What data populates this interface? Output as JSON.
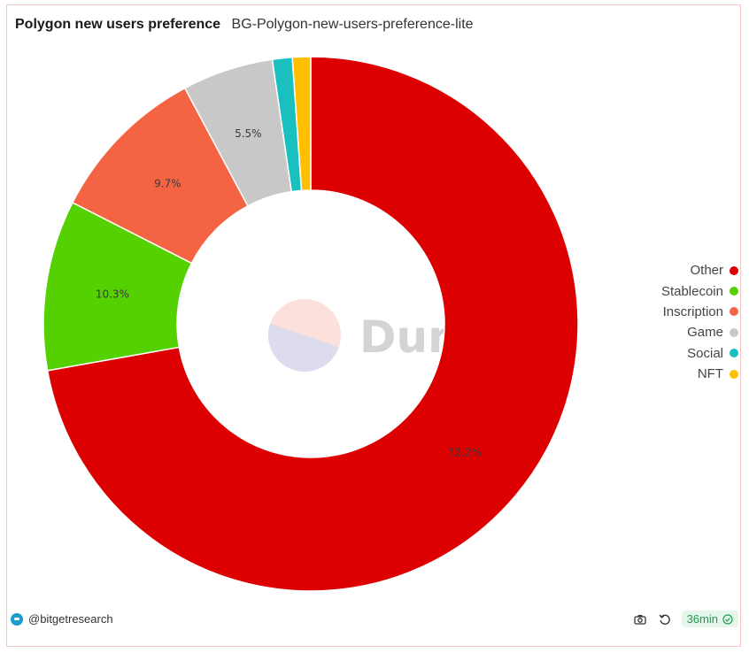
{
  "header": {
    "title": "Polygon new users preference",
    "subtitle": "BG-Polygon-new-users-preference-lite"
  },
  "chart_data": {
    "type": "pie",
    "donut": true,
    "title": "Polygon new users preference",
    "categories": [
      "Other",
      "Stablecoin",
      "Inscription",
      "Game",
      "Social",
      "NFT"
    ],
    "values": [
      72.2,
      10.3,
      9.7,
      5.5,
      1.2,
      1.1
    ],
    "value_labels": [
      "72.2%",
      "10.3%",
      "9.7%",
      "5.5%",
      "",
      ""
    ],
    "colors": [
      "#dd0000",
      "#55d000",
      "#f46342",
      "#c8c8c8",
      "#1abfbf",
      "#ffbf00"
    ],
    "legend_position": "right"
  },
  "watermark": {
    "text": "Dune"
  },
  "footer": {
    "author": "@bitgetresearch",
    "refresh_badge": "36min",
    "icons": [
      "camera-icon",
      "refresh-icon",
      "check-circle-icon"
    ]
  }
}
